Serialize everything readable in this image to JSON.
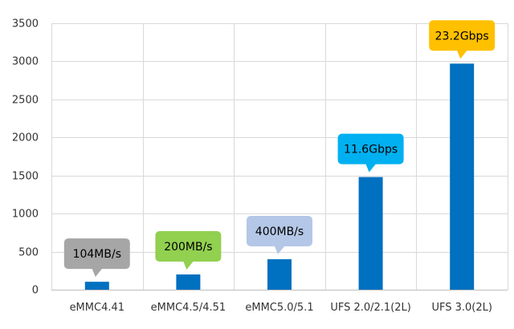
{
  "chart_data": {
    "type": "bar",
    "categories": [
      "eMMC4.41",
      "eMMC4.5/4.51",
      "eMMC5.0/5.1",
      "UFS 2.0/2.1(2L)",
      "UFS 3.0(2L)"
    ],
    "values": [
      104,
      200,
      400,
      1480,
      2970
    ],
    "ylim": [
      0,
      3500
    ],
    "yticks": [
      "0",
      "500",
      "1000",
      "1500",
      "2000",
      "2500",
      "3000",
      "3500"
    ],
    "title": "",
    "xlabel": "",
    "ylabel": "",
    "grid": true,
    "bar_color": "#0070c0",
    "annotations": [
      {
        "text": "104MB/s",
        "category_index": 0,
        "color": "#a6a6a6",
        "text_color": "#000000"
      },
      {
        "text": "200MB/s",
        "category_index": 1,
        "color": "#92d050",
        "text_color": "#000000"
      },
      {
        "text": "400MB/s",
        "category_index": 2,
        "color": "#b4c7e7",
        "text_color": "#000000"
      },
      {
        "text": "11.6Gbps",
        "category_index": 3,
        "color": "#00b0f0",
        "text_color": "#000000"
      },
      {
        "text": "23.2Gbps",
        "category_index": 4,
        "color": "#ffc000",
        "text_color": "#000000"
      }
    ]
  }
}
